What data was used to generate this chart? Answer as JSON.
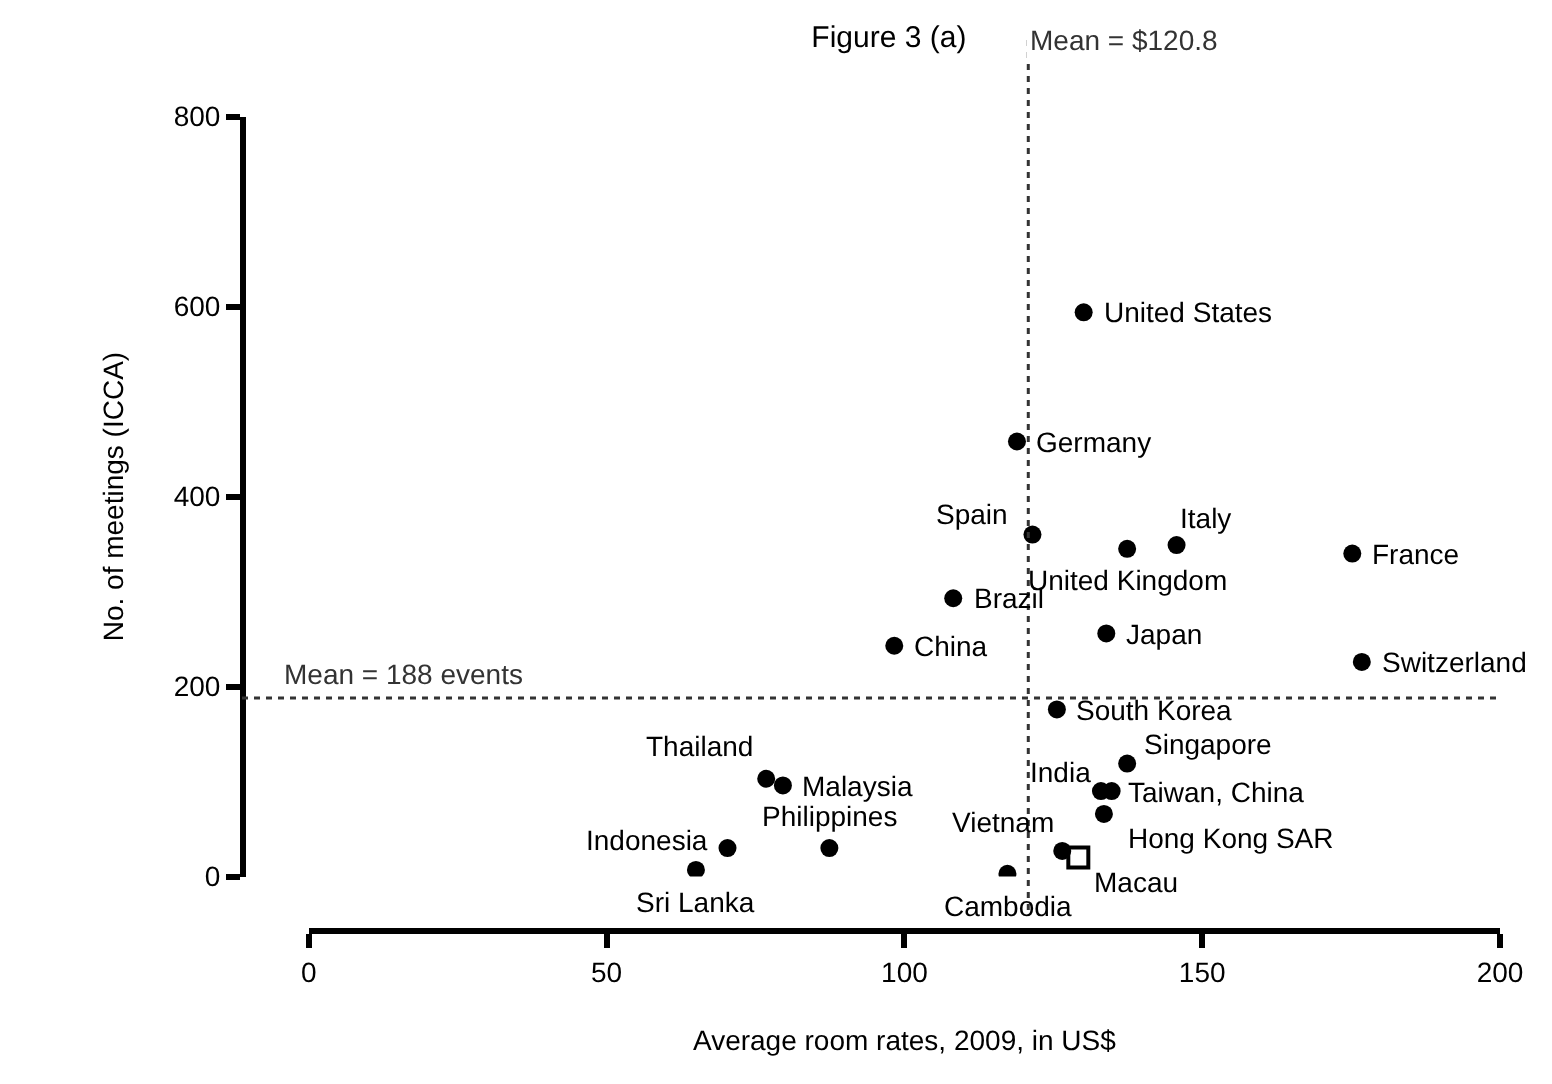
{
  "chart_data": {
    "type": "scatter",
    "title": "Figure 3 (a)",
    "xlabel": "Average room rates, 2009, in US$",
    "ylabel": "No. of meetings (ICCA)",
    "xlim": [
      0,
      200
    ],
    "xticks": [
      0,
      50,
      100,
      150,
      200
    ],
    "ylim": [
      0,
      800
    ],
    "yticks": [
      0,
      200,
      400,
      600,
      800
    ],
    "series": [
      {
        "color": "#000000",
        "marker": "circle",
        "x": [
          130.1,
          118.9,
          121.5,
          145.7,
          137.4,
          175.2,
          108.2,
          133.9,
          98.3,
          176.8,
          125.6,
          137.4,
          133.0,
          134.8,
          133.5,
          76.8,
          79.6,
          70.3,
          87.4,
          65.0,
          126.5,
          117.3
        ],
        "values": [
          594,
          458,
          360,
          349,
          345,
          340,
          293,
          256,
          243,
          226,
          176,
          119,
          90,
          90,
          66,
          103,
          96,
          30,
          30,
          7,
          27,
          3
        ]
      },
      {
        "color": "#000000",
        "marker": "square",
        "x": [
          129.2
        ],
        "values": [
          20
        ]
      }
    ],
    "ref_lines": [
      {
        "axis": "x",
        "value": 120.8,
        "label": "Mean = $120.8",
        "color": "#333333",
        "line_style": "dotted"
      },
      {
        "axis": "y",
        "value": 188,
        "label": "Mean = 188 events",
        "color": "#333333",
        "line_style": "dotted"
      }
    ],
    "annotations": [
      {
        "text": "United States",
        "x": 130.1,
        "y": 594
      },
      {
        "text": "Germany",
        "x": 118.9,
        "y": 458
      },
      {
        "text": "Spain",
        "x": 121.5,
        "y": 360
      },
      {
        "text": "Italy",
        "x": 145.7,
        "y": 349
      },
      {
        "text": "United Kingdom",
        "x": 137.4,
        "y": 345
      },
      {
        "text": "France",
        "x": 175.2,
        "y": 340
      },
      {
        "text": "Brazil",
        "x": 108.2,
        "y": 293
      },
      {
        "text": "Japan",
        "x": 133.9,
        "y": 256
      },
      {
        "text": "China",
        "x": 98.3,
        "y": 243
      },
      {
        "text": "Switzerland",
        "x": 176.8,
        "y": 226
      },
      {
        "text": "South Korea",
        "x": 125.6,
        "y": 176
      },
      {
        "text": "Singapore",
        "x": 137.4,
        "y": 119
      },
      {
        "text": "India",
        "x": 133.0,
        "y": 90
      },
      {
        "text": "Taiwan, China",
        "x": 134.8,
        "y": 90
      },
      {
        "text": "Hong Kong SAR",
        "x": 133.5,
        "y": 66
      },
      {
        "text": "Thailand",
        "x": 76.8,
        "y": 103
      },
      {
        "text": "Malaysia",
        "x": 79.6,
        "y": 96
      },
      {
        "text": "Indonesia",
        "x": 70.3,
        "y": 30
      },
      {
        "text": "Philippines",
        "x": 87.4,
        "y": 30
      },
      {
        "text": "Sri Lanka",
        "x": 65.0,
        "y": 7
      },
      {
        "text": "Vietnam",
        "x": 126.5,
        "y": 27
      },
      {
        "text": "Cambodia",
        "x": 117.3,
        "y": 3
      },
      {
        "text": "Macau",
        "x": 129.2,
        "y": 20
      }
    ]
  }
}
